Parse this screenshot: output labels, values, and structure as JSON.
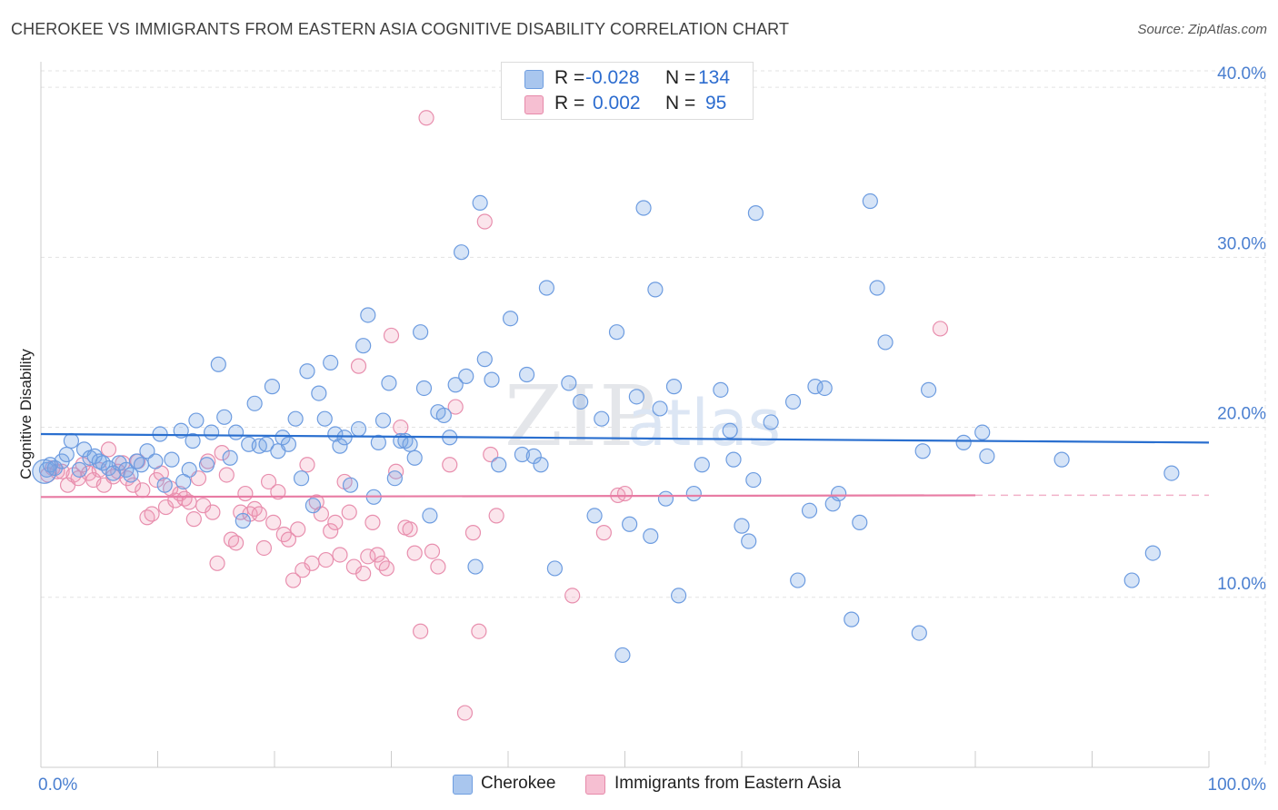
{
  "title": "CHEROKEE VS IMMIGRANTS FROM EASTERN ASIA COGNITIVE DISABILITY CORRELATION CHART",
  "source": "Source: ZipAtlas.com",
  "watermark": {
    "zip": "ZIP",
    "atlas": "atlas"
  },
  "legend": {
    "rows": [
      {
        "r_label": "R =",
        "r_value": "-0.028",
        "n_label": "N =",
        "n_value": "134",
        "color": "#a9c6ee",
        "border": "#6f9ee0"
      },
      {
        "r_label": "R =",
        "r_value": "0.002",
        "n_label": "N =",
        "n_value": "95",
        "color": "#f6bfd2",
        "border": "#e68aaa"
      }
    ]
  },
  "bottom_legend": {
    "cherokee": "Cherokee",
    "immigrants": "Immigrants from Eastern Asia"
  },
  "colors": {
    "cherokee_fill": "rgba(120,165,230,0.30)",
    "cherokee_stroke": "#6d9ce0",
    "cherokee_line": "#2a6fcf",
    "immigrants_fill": "rgba(240,150,180,0.25)",
    "immigrants_stroke": "#e88fae",
    "immigrants_line": "#e87ca4",
    "grid": "#e3e3e3",
    "tick_text": "#4a7fd0"
  },
  "chart_data": {
    "type": "scatter",
    "title": "CHEROKEE VS IMMIGRANTS FROM EASTERN ASIA COGNITIVE DISABILITY CORRELATION CHART",
    "xlabel": "",
    "ylabel": "Cognitive Disability",
    "xlim": [
      0,
      100
    ],
    "ylim": [
      0,
      41.5
    ],
    "x_tick_labels": [
      "0.0%",
      "100.0%"
    ],
    "y_ticks": [
      10,
      20,
      30,
      40
    ],
    "y_tick_labels": [
      "10.0%",
      "20.0%",
      "30.0%",
      "40.0%"
    ],
    "grid": true,
    "legend_placement": "bottom-center",
    "series": [
      {
        "name": "Cherokee",
        "r": -0.028,
        "n": 134,
        "trend": {
          "x": [
            0,
            100
          ],
          "y": [
            19.6,
            19.1
          ]
        },
        "points": [
          [
            0.5,
            17.5
          ],
          [
            0.8,
            17.8
          ],
          [
            1.2,
            17.6
          ],
          [
            1.8,
            18.0
          ],
          [
            2.2,
            18.4
          ],
          [
            2.6,
            19.2
          ],
          [
            3.3,
            17.5
          ],
          [
            3.7,
            18.7
          ],
          [
            4.2,
            18.2
          ],
          [
            4.6,
            18.3
          ],
          [
            5.0,
            18.0
          ],
          [
            5.3,
            17.9
          ],
          [
            5.8,
            17.6
          ],
          [
            6.2,
            17.3
          ],
          [
            6.7,
            17.9
          ],
          [
            7.3,
            17.5
          ],
          [
            7.7,
            17.2
          ],
          [
            8.2,
            18.0
          ],
          [
            8.6,
            17.8
          ],
          [
            9.1,
            18.6
          ],
          [
            9.8,
            18.0
          ],
          [
            10.2,
            19.6
          ],
          [
            10.6,
            16.6
          ],
          [
            11.2,
            18.1
          ],
          [
            12.0,
            19.8
          ],
          [
            12.7,
            17.5
          ],
          [
            12.2,
            16.8
          ],
          [
            13.0,
            19.2
          ],
          [
            13.3,
            20.4
          ],
          [
            14.2,
            17.8
          ],
          [
            14.6,
            19.7
          ],
          [
            15.2,
            23.7
          ],
          [
            15.7,
            20.6
          ],
          [
            16.2,
            18.2
          ],
          [
            16.7,
            19.7
          ],
          [
            17.3,
            14.5
          ],
          [
            17.8,
            19.0
          ],
          [
            18.3,
            21.4
          ],
          [
            18.7,
            18.9
          ],
          [
            19.3,
            19.0
          ],
          [
            19.8,
            22.4
          ],
          [
            20.3,
            18.6
          ],
          [
            20.7,
            19.4
          ],
          [
            21.2,
            19.0
          ],
          [
            21.8,
            20.5
          ],
          [
            22.3,
            17.0
          ],
          [
            22.8,
            23.3
          ],
          [
            23.3,
            15.4
          ],
          [
            23.8,
            22.0
          ],
          [
            24.3,
            20.5
          ],
          [
            24.8,
            23.8
          ],
          [
            25.2,
            19.6
          ],
          [
            25.6,
            18.9
          ],
          [
            26.0,
            19.4
          ],
          [
            26.5,
            16.6
          ],
          [
            27.2,
            19.9
          ],
          [
            27.6,
            24.8
          ],
          [
            28.0,
            26.6
          ],
          [
            28.5,
            15.9
          ],
          [
            28.9,
            19.1
          ],
          [
            29.3,
            20.4
          ],
          [
            29.8,
            22.6
          ],
          [
            30.3,
            17.0
          ],
          [
            30.8,
            19.2
          ],
          [
            31.2,
            19.2
          ],
          [
            31.6,
            19.0
          ],
          [
            32.0,
            18.2
          ],
          [
            32.5,
            25.6
          ],
          [
            32.8,
            22.3
          ],
          [
            33.3,
            14.8
          ],
          [
            34.0,
            20.9
          ],
          [
            34.5,
            20.7
          ],
          [
            35.0,
            19.4
          ],
          [
            35.5,
            22.5
          ],
          [
            36.0,
            30.3
          ],
          [
            36.4,
            23.0
          ],
          [
            37.2,
            11.8
          ],
          [
            37.6,
            33.2
          ],
          [
            38.0,
            24.0
          ],
          [
            38.6,
            22.8
          ],
          [
            39.2,
            17.8
          ],
          [
            40.2,
            26.4
          ],
          [
            41.2,
            18.4
          ],
          [
            41.6,
            23.1
          ],
          [
            42.2,
            18.3
          ],
          [
            43.3,
            28.2
          ],
          [
            42.8,
            17.8
          ],
          [
            44.0,
            11.7
          ],
          [
            45.2,
            22.6
          ],
          [
            46.2,
            21.5
          ],
          [
            47.4,
            14.8
          ],
          [
            48.0,
            20.5
          ],
          [
            49.3,
            25.6
          ],
          [
            49.8,
            6.6
          ],
          [
            50.4,
            14.3
          ],
          [
            51.0,
            21.8
          ],
          [
            51.6,
            32.9
          ],
          [
            52.2,
            13.6
          ],
          [
            52.6,
            28.1
          ],
          [
            53.0,
            21.1
          ],
          [
            53.5,
            15.8
          ],
          [
            54.2,
            22.4
          ],
          [
            54.6,
            10.1
          ],
          [
            55.9,
            16.1
          ],
          [
            56.6,
            17.8
          ],
          [
            58.2,
            22.2
          ],
          [
            59.0,
            19.8
          ],
          [
            59.3,
            18.1
          ],
          [
            60.0,
            14.2
          ],
          [
            60.6,
            13.3
          ],
          [
            61.0,
            16.9
          ],
          [
            61.2,
            32.6
          ],
          [
            62.5,
            20.3
          ],
          [
            64.4,
            21.5
          ],
          [
            64.8,
            11.0
          ],
          [
            65.8,
            15.1
          ],
          [
            66.3,
            22.4
          ],
          [
            67.1,
            22.3
          ],
          [
            67.8,
            15.5
          ],
          [
            68.3,
            16.1
          ],
          [
            69.4,
            8.7
          ],
          [
            70.1,
            14.4
          ],
          [
            71.0,
            33.3
          ],
          [
            71.6,
            28.2
          ],
          [
            72.3,
            25.0
          ],
          [
            75.2,
            7.9
          ],
          [
            75.5,
            18.6
          ],
          [
            76.0,
            22.2
          ],
          [
            79.0,
            19.1
          ],
          [
            80.6,
            19.7
          ],
          [
            81.0,
            18.3
          ],
          [
            87.4,
            18.1
          ],
          [
            93.4,
            11.0
          ],
          [
            95.2,
            12.6
          ],
          [
            96.8,
            17.3
          ]
        ]
      },
      {
        "name": "Immigrants from Eastern Asia",
        "r": 0.002,
        "n": 95,
        "trend": {
          "x": [
            0,
            80
          ],
          "y": [
            15.9,
            16.0
          ]
        },
        "trend_dashed_to": 100,
        "points": [
          [
            0.6,
            17.2
          ],
          [
            1.0,
            17.6
          ],
          [
            1.4,
            17.4
          ],
          [
            1.8,
            17.4
          ],
          [
            2.3,
            16.6
          ],
          [
            2.8,
            17.2
          ],
          [
            3.2,
            17.0
          ],
          [
            3.6,
            17.8
          ],
          [
            4.1,
            17.3
          ],
          [
            4.5,
            16.9
          ],
          [
            5.0,
            17.5
          ],
          [
            5.4,
            16.6
          ],
          [
            5.8,
            18.7
          ],
          [
            6.2,
            17.1
          ],
          [
            6.6,
            17.4
          ],
          [
            7.0,
            17.9
          ],
          [
            7.4,
            17.0
          ],
          [
            7.9,
            16.6
          ],
          [
            8.3,
            18.0
          ],
          [
            8.7,
            16.3
          ],
          [
            9.1,
            14.7
          ],
          [
            9.5,
            14.9
          ],
          [
            9.9,
            16.9
          ],
          [
            10.3,
            17.3
          ],
          [
            10.7,
            15.3
          ],
          [
            11.1,
            16.4
          ],
          [
            11.5,
            15.7
          ],
          [
            11.9,
            16.1
          ],
          [
            12.3,
            15.8
          ],
          [
            12.7,
            15.6
          ],
          [
            13.1,
            14.6
          ],
          [
            13.5,
            17.0
          ],
          [
            13.9,
            15.4
          ],
          [
            14.3,
            18.0
          ],
          [
            14.7,
            15.0
          ],
          [
            15.1,
            12.0
          ],
          [
            15.5,
            18.5
          ],
          [
            15.9,
            17.2
          ],
          [
            16.3,
            13.4
          ],
          [
            16.7,
            13.2
          ],
          [
            17.1,
            15.0
          ],
          [
            17.5,
            16.1
          ],
          [
            17.9,
            14.9
          ],
          [
            18.3,
            15.2
          ],
          [
            18.7,
            14.9
          ],
          [
            19.1,
            12.9
          ],
          [
            19.5,
            16.8
          ],
          [
            19.9,
            14.4
          ],
          [
            20.3,
            16.2
          ],
          [
            20.8,
            13.7
          ],
          [
            21.2,
            13.4
          ],
          [
            21.6,
            11.0
          ],
          [
            22.0,
            14.0
          ],
          [
            22.4,
            11.6
          ],
          [
            22.8,
            17.8
          ],
          [
            23.2,
            12.0
          ],
          [
            23.6,
            15.6
          ],
          [
            24.0,
            14.9
          ],
          [
            24.4,
            12.2
          ],
          [
            24.8,
            13.9
          ],
          [
            25.2,
            14.4
          ],
          [
            25.6,
            12.5
          ],
          [
            26.0,
            16.8
          ],
          [
            26.4,
            15.0
          ],
          [
            26.8,
            11.8
          ],
          [
            27.2,
            23.6
          ],
          [
            27.6,
            11.4
          ],
          [
            28.0,
            12.4
          ],
          [
            28.4,
            14.4
          ],
          [
            28.8,
            12.5
          ],
          [
            29.2,
            12.0
          ],
          [
            29.6,
            11.7
          ],
          [
            30.0,
            25.4
          ],
          [
            30.4,
            17.4
          ],
          [
            30.8,
            20.0
          ],
          [
            31.2,
            14.1
          ],
          [
            31.6,
            14.0
          ],
          [
            32.0,
            12.6
          ],
          [
            32.5,
            8.0
          ],
          [
            33.0,
            38.2
          ],
          [
            33.5,
            12.7
          ],
          [
            34.0,
            11.8
          ],
          [
            35.0,
            17.8
          ],
          [
            35.5,
            21.2
          ],
          [
            36.3,
            3.2
          ],
          [
            37.0,
            13.8
          ],
          [
            37.5,
            8.0
          ],
          [
            38.0,
            32.1
          ],
          [
            38.5,
            18.4
          ],
          [
            39.0,
            14.8
          ],
          [
            45.5,
            10.1
          ],
          [
            48.2,
            13.8
          ],
          [
            49.4,
            16.0
          ],
          [
            50.0,
            16.1
          ],
          [
            77.0,
            25.8
          ]
        ]
      }
    ]
  }
}
